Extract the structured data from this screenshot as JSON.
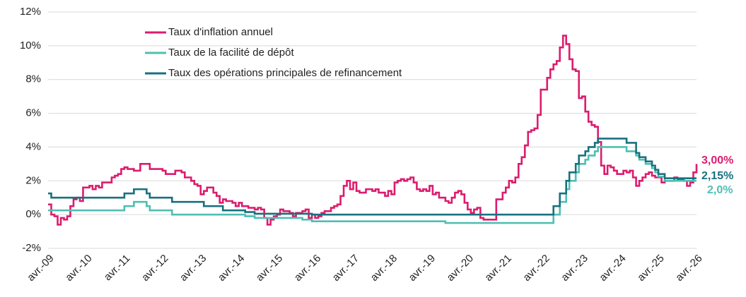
{
  "chart_data": {
    "type": "line",
    "categories": [
      "avr.-09",
      null,
      null,
      null,
      null,
      null,
      null,
      null,
      null,
      null,
      null,
      null,
      "avr.-10",
      null,
      null,
      null,
      null,
      null,
      null,
      null,
      null,
      null,
      null,
      null,
      "avr.-11",
      null,
      null,
      null,
      null,
      null,
      null,
      null,
      null,
      null,
      null,
      null,
      "avr.-12",
      null,
      null,
      null,
      null,
      null,
      null,
      null,
      null,
      null,
      null,
      null,
      "avr.-13",
      null,
      null,
      null,
      null,
      null,
      null,
      null,
      null,
      null,
      null,
      null,
      "avr.-14",
      null,
      null,
      null,
      null,
      null,
      null,
      null,
      null,
      null,
      null,
      null,
      "avr.-15",
      null,
      null,
      null,
      null,
      null,
      null,
      null,
      null,
      null,
      null,
      null,
      "avr.-16",
      null,
      null,
      null,
      null,
      null,
      null,
      null,
      null,
      null,
      null,
      null,
      "avr.-17",
      null,
      null,
      null,
      null,
      null,
      null,
      null,
      null,
      null,
      null,
      null,
      "avr.-18",
      null,
      null,
      null,
      null,
      null,
      null,
      null,
      null,
      null,
      null,
      null,
      "avr.-19",
      null,
      null,
      null,
      null,
      null,
      null,
      null,
      null,
      null,
      null,
      null,
      "avr.-20",
      null,
      null,
      null,
      null,
      null,
      null,
      null,
      null,
      null,
      null,
      null,
      "avr.-21",
      null,
      null,
      null,
      null,
      null,
      null,
      null,
      null,
      null,
      null,
      null,
      "avr.-22",
      null,
      null,
      null,
      null,
      null,
      null,
      null,
      null,
      null,
      null,
      null,
      "avr.-23",
      null,
      null,
      null,
      null,
      null,
      null,
      null,
      null,
      null,
      null,
      null,
      "avr.-24",
      null,
      null,
      null,
      null,
      null,
      null,
      null,
      null,
      null,
      null,
      null,
      "avr.-25",
      null,
      null,
      null,
      null,
      null,
      null,
      null,
      null,
      null,
      null,
      null,
      "avr.-26"
    ],
    "series": [
      {
        "name": "Taux d'inflation annuel",
        "color": "#dc1c6e",
        "end_label": "3,00%",
        "values": [
          0.6,
          0.0,
          -0.1,
          -0.6,
          -0.2,
          -0.3,
          -0.1,
          0.5,
          0.9,
          1.0,
          0.8,
          1.6,
          1.6,
          1.7,
          1.5,
          1.7,
          1.6,
          1.9,
          1.9,
          1.9,
          2.2,
          2.3,
          2.4,
          2.7,
          2.8,
          2.7,
          2.7,
          2.6,
          2.6,
          3.0,
          3.0,
          3.0,
          2.7,
          2.7,
          2.7,
          2.7,
          2.6,
          2.4,
          2.4,
          2.4,
          2.6,
          2.6,
          2.5,
          2.2,
          2.2,
          2.0,
          1.8,
          1.7,
          1.2,
          1.4,
          1.6,
          1.6,
          1.3,
          1.1,
          0.7,
          0.9,
          0.8,
          0.8,
          0.7,
          0.5,
          0.7,
          0.5,
          0.5,
          0.4,
          0.4,
          0.3,
          0.4,
          0.3,
          -0.2,
          -0.6,
          -0.3,
          -0.1,
          0.0,
          0.3,
          0.2,
          0.2,
          0.1,
          -0.1,
          0.1,
          0.1,
          0.2,
          0.3,
          -0.2,
          0.0,
          -0.2,
          -0.1,
          0.1,
          0.2,
          0.2,
          0.4,
          0.5,
          0.6,
          1.1,
          1.7,
          2.0,
          1.5,
          1.9,
          1.4,
          1.3,
          1.3,
          1.5,
          1.5,
          1.4,
          1.5,
          1.3,
          1.3,
          1.1,
          1.4,
          1.2,
          1.9,
          2.0,
          2.1,
          2.0,
          2.1,
          2.2,
          1.9,
          1.5,
          1.4,
          1.5,
          1.4,
          1.7,
          1.2,
          1.3,
          1.0,
          1.0,
          0.8,
          0.7,
          1.0,
          1.3,
          1.4,
          1.2,
          0.7,
          0.3,
          0.1,
          0.3,
          0.4,
          -0.2,
          -0.3,
          -0.3,
          -0.3,
          -0.3,
          0.9,
          0.9,
          1.3,
          1.6,
          2.0,
          1.9,
          2.2,
          3.0,
          3.4,
          4.1,
          4.9,
          5.0,
          5.1,
          5.9,
          7.4,
          7.4,
          8.1,
          8.6,
          8.9,
          9.1,
          9.9,
          10.6,
          10.1,
          9.2,
          8.6,
          8.5,
          6.9,
          7.0,
          6.1,
          5.5,
          5.3,
          5.2,
          4.3,
          2.9,
          2.4,
          2.9,
          2.8,
          2.6,
          2.4,
          2.4,
          2.6,
          2.5,
          2.6,
          2.2,
          1.7,
          2.0,
          2.2,
          2.4,
          2.5,
          2.3,
          2.2,
          2.2,
          1.9,
          2.0,
          2.0,
          2.0,
          2.2,
          2.1,
          2.1,
          2.0,
          1.7,
          1.9,
          2.5,
          3.0
        ]
      },
      {
        "name": "Taux de la facilité de dépôt",
        "color": "#4fbfb2",
        "end_label": "2,0%",
        "values": [
          0.25,
          0.25,
          0.25,
          0.25,
          0.25,
          0.25,
          0.25,
          0.25,
          0.25,
          0.25,
          0.25,
          0.25,
          0.25,
          0.25,
          0.25,
          0.25,
          0.25,
          0.25,
          0.25,
          0.25,
          0.25,
          0.25,
          0.25,
          0.25,
          0.5,
          0.5,
          0.5,
          0.75,
          0.75,
          0.75,
          0.75,
          0.5,
          0.25,
          0.25,
          0.25,
          0.25,
          0.25,
          0.25,
          0.25,
          0,
          0,
          0,
          0,
          0,
          0,
          0,
          0,
          0,
          0,
          0,
          0,
          0,
          0,
          0,
          0,
          0,
          0,
          0,
          0,
          0,
          0,
          0,
          -0.1,
          -0.1,
          -0.1,
          -0.2,
          -0.2,
          -0.2,
          -0.2,
          -0.2,
          -0.2,
          -0.2,
          -0.2,
          -0.2,
          -0.2,
          -0.2,
          -0.2,
          -0.2,
          -0.2,
          -0.2,
          -0.3,
          -0.3,
          -0.3,
          -0.4,
          -0.4,
          -0.4,
          -0.4,
          -0.4,
          -0.4,
          -0.4,
          -0.4,
          -0.4,
          -0.4,
          -0.4,
          -0.4,
          -0.4,
          -0.4,
          -0.4,
          -0.4,
          -0.4,
          -0.4,
          -0.4,
          -0.4,
          -0.4,
          -0.4,
          -0.4,
          -0.4,
          -0.4,
          -0.4,
          -0.4,
          -0.4,
          -0.4,
          -0.4,
          -0.4,
          -0.4,
          -0.4,
          -0.4,
          -0.4,
          -0.4,
          -0.4,
          -0.4,
          -0.4,
          -0.4,
          -0.4,
          -0.4,
          -0.5,
          -0.5,
          -0.5,
          -0.5,
          -0.5,
          -0.5,
          -0.5,
          -0.5,
          -0.5,
          -0.5,
          -0.5,
          -0.5,
          -0.5,
          -0.5,
          -0.5,
          -0.5,
          -0.5,
          -0.5,
          -0.5,
          -0.5,
          -0.5,
          -0.5,
          -0.5,
          -0.5,
          -0.5,
          -0.5,
          -0.5,
          -0.5,
          -0.5,
          -0.5,
          -0.5,
          -0.5,
          -0.5,
          -0.5,
          0,
          0,
          0.75,
          0.75,
          1.5,
          2.0,
          2.0,
          2.5,
          3.0,
          3.0,
          3.25,
          3.5,
          3.5,
          3.75,
          4.0,
          4.0,
          4.0,
          4.0,
          4.0,
          4.0,
          4.0,
          4.0,
          4.0,
          3.75,
          3.75,
          3.75,
          3.5,
          3.25,
          3.25,
          3.0,
          3.0,
          2.75,
          2.5,
          2.25,
          2.25,
          2.0,
          2.0,
          2.0,
          2.0,
          2.0,
          2.0,
          2.0,
          2.0,
          2.0,
          2.0,
          2.0
        ]
      },
      {
        "name": "Taux des opérations principales de refinancement",
        "color": "#18717f",
        "end_label": "2,15%",
        "values": [
          1.25,
          1.0,
          1.0,
          1.0,
          1.0,
          1.0,
          1.0,
          1.0,
          1.0,
          1.0,
          1.0,
          1.0,
          1.0,
          1.0,
          1.0,
          1.0,
          1.0,
          1.0,
          1.0,
          1.0,
          1.0,
          1.0,
          1.0,
          1.0,
          1.25,
          1.25,
          1.25,
          1.5,
          1.5,
          1.5,
          1.5,
          1.25,
          1.0,
          1.0,
          1.0,
          1.0,
          1.0,
          1.0,
          1.0,
          0.75,
          0.75,
          0.75,
          0.75,
          0.75,
          0.75,
          0.75,
          0.75,
          0.75,
          0.75,
          0.5,
          0.5,
          0.5,
          0.5,
          0.5,
          0.5,
          0.25,
          0.25,
          0.25,
          0.25,
          0.25,
          0.25,
          0.25,
          0.15,
          0.15,
          0.15,
          0.05,
          0.05,
          0.05,
          0.05,
          0.05,
          0.05,
          0.05,
          0.05,
          0.05,
          0.05,
          0.05,
          0.05,
          0.05,
          0.05,
          0.05,
          0.05,
          0.05,
          0.05,
          0,
          0,
          0,
          0,
          0,
          0,
          0,
          0,
          0,
          0,
          0,
          0,
          0,
          0,
          0,
          0,
          0,
          0,
          0,
          0,
          0,
          0,
          0,
          0,
          0,
          0,
          0,
          0,
          0,
          0,
          0,
          0,
          0,
          0,
          0,
          0,
          0,
          0,
          0,
          0,
          0,
          0,
          0,
          0,
          0,
          0,
          0,
          0,
          0,
          0,
          0,
          0,
          0,
          0,
          0,
          0,
          0,
          0,
          0,
          0,
          0,
          0,
          0,
          0,
          0,
          0,
          0,
          0,
          0,
          0,
          0,
          0,
          0,
          0,
          0,
          0,
          0.5,
          0.5,
          1.25,
          1.25,
          2.0,
          2.5,
          2.5,
          3.0,
          3.5,
          3.5,
          3.75,
          4.0,
          4.0,
          4.25,
          4.5,
          4.5,
          4.5,
          4.5,
          4.5,
          4.5,
          4.5,
          4.5,
          4.5,
          4.25,
          4.25,
          4.25,
          3.65,
          3.4,
          3.4,
          3.15,
          3.15,
          2.9,
          2.65,
          2.4,
          2.4,
          2.15,
          2.15,
          2.15,
          2.15,
          2.15,
          2.15,
          2.15,
          2.15,
          2.15,
          2.15,
          2.15
        ]
      }
    ],
    "ylim": [
      -2,
      12
    ],
    "yticks": [
      {
        "value": -2,
        "label": "-2%"
      },
      {
        "value": 0,
        "label": "0%"
      },
      {
        "value": 2,
        "label": "2%"
      },
      {
        "value": 4,
        "label": "4%"
      },
      {
        "value": 6,
        "label": "6%"
      },
      {
        "value": 8,
        "label": "8%"
      },
      {
        "value": 10,
        "label": "10%"
      },
      {
        "value": 12,
        "label": "12%"
      }
    ],
    "grid": true,
    "legend": "upper left",
    "step": true
  }
}
